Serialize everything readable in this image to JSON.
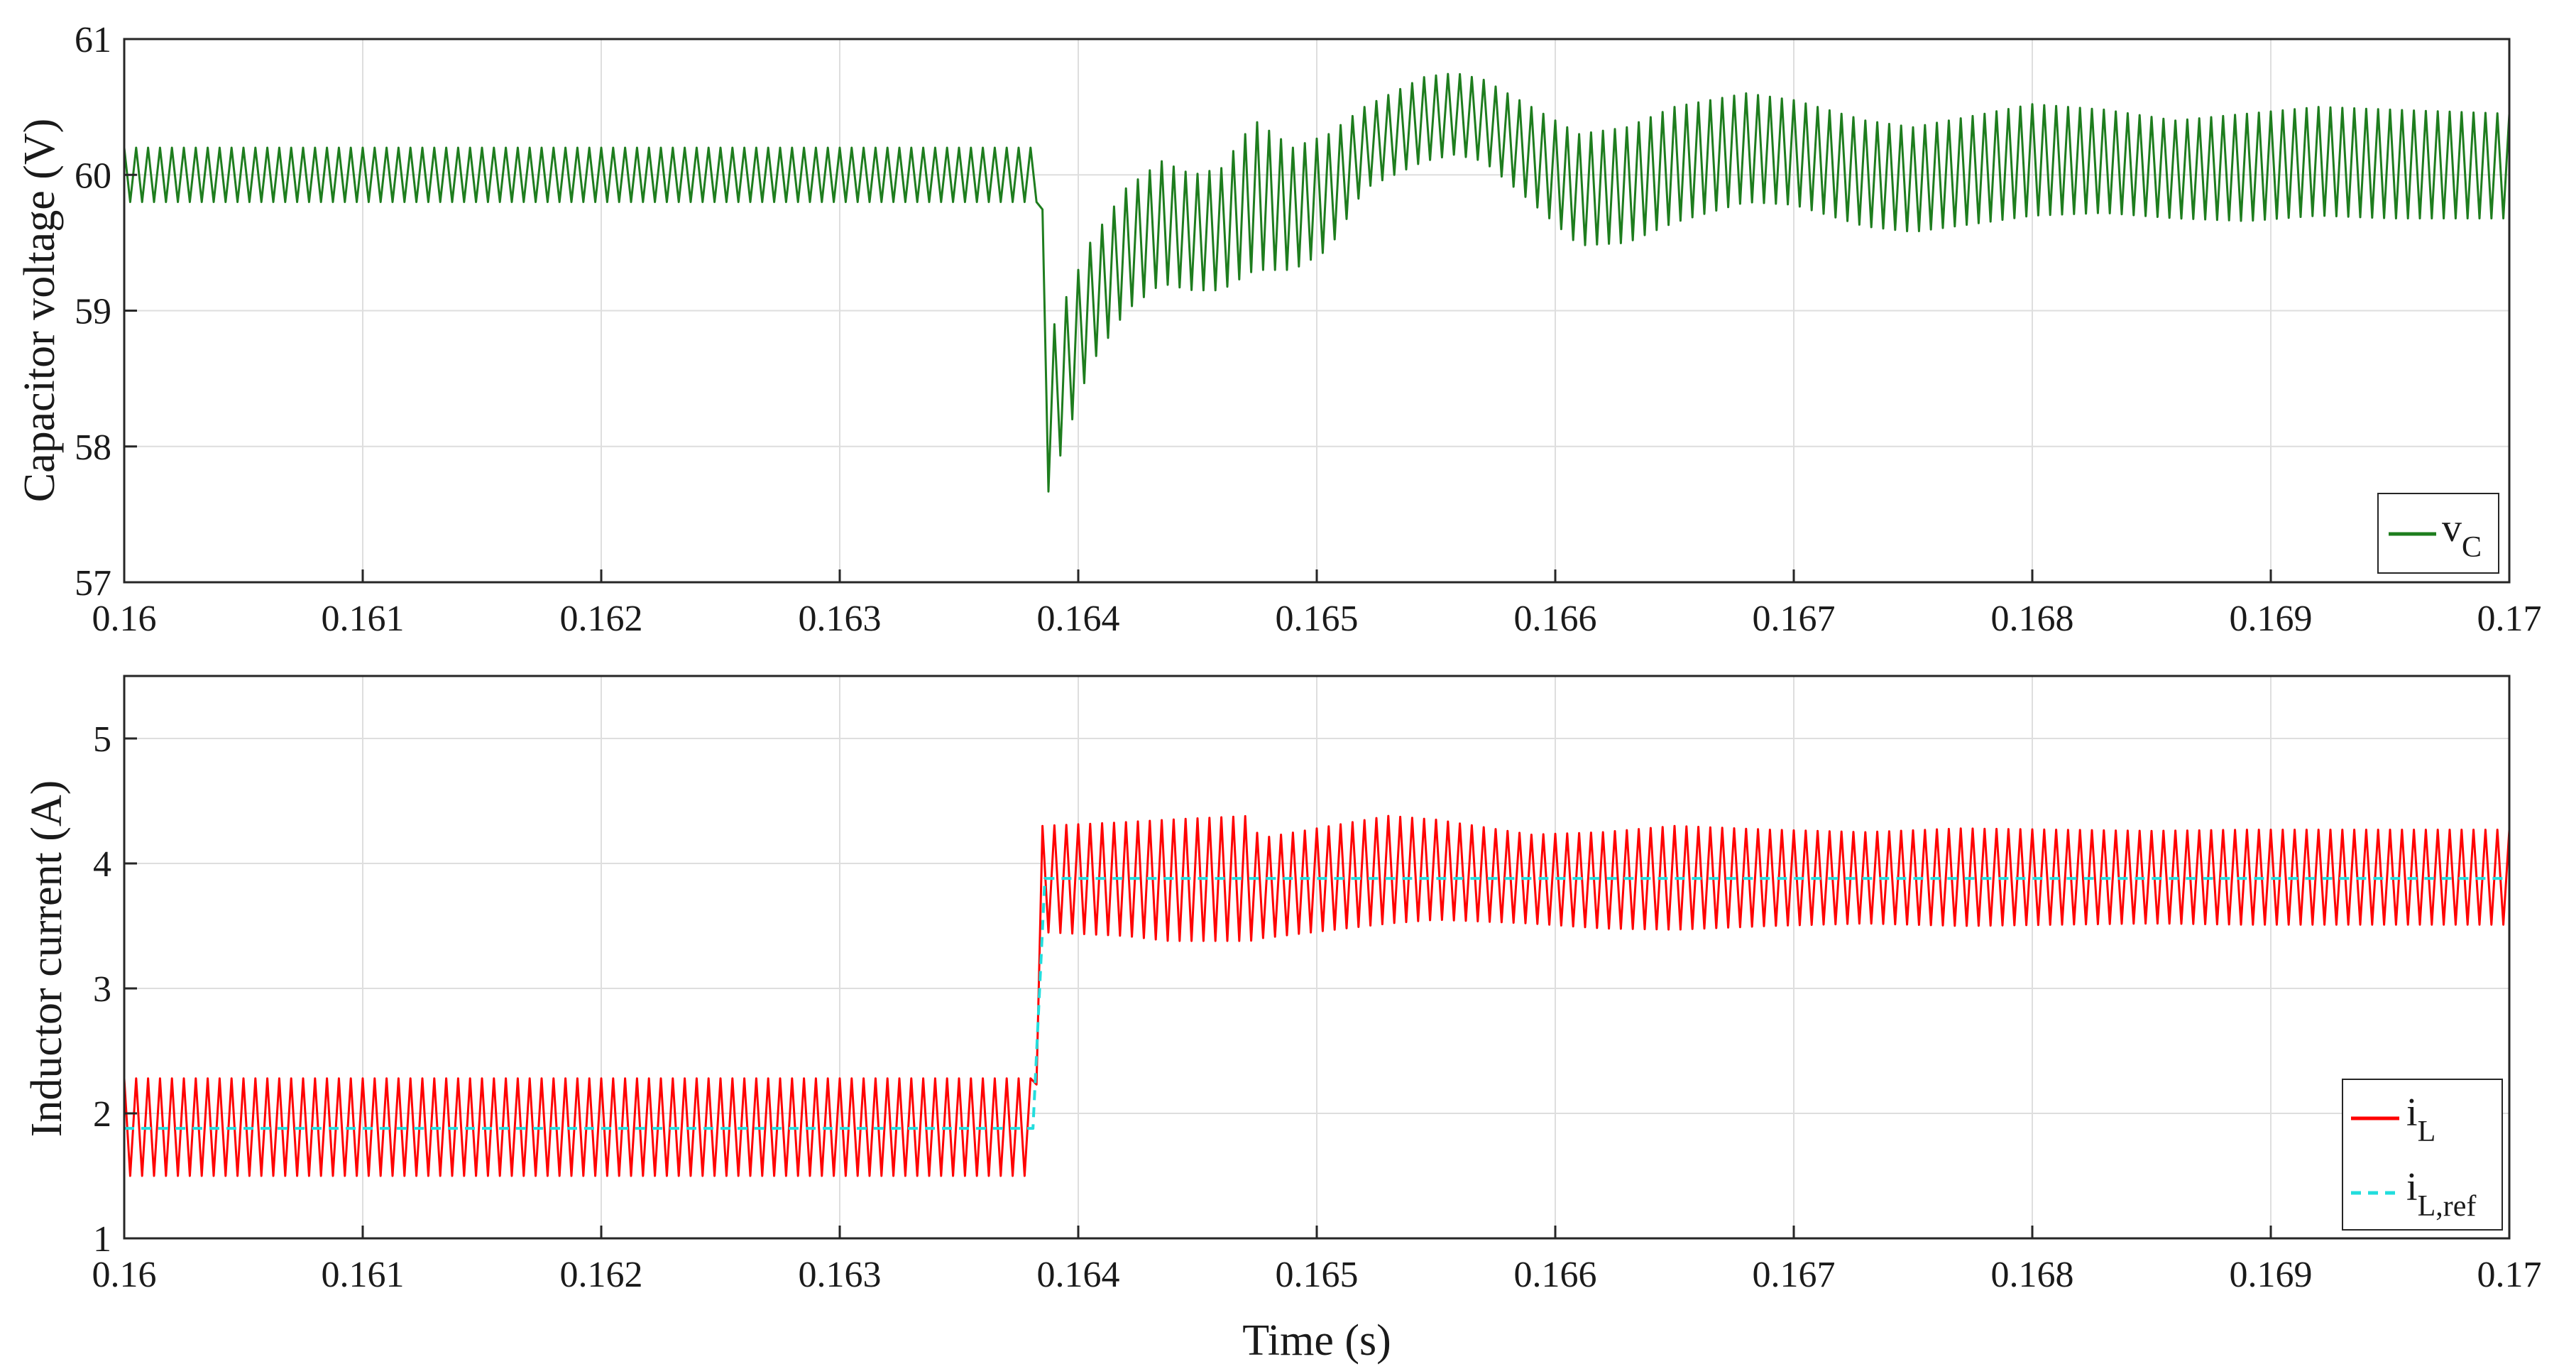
{
  "chart_data": [
    {
      "type": "line",
      "ylabel": "Capacitor voltage (V)",
      "xlabel": "",
      "xlim": [
        0.16,
        0.17
      ],
      "ylim": [
        57,
        61
      ],
      "x_ticks": [
        "0.16",
        "0.161",
        "0.162",
        "0.163",
        "0.164",
        "0.165",
        "0.166",
        "0.167",
        "0.168",
        "0.169",
        "0.17"
      ],
      "y_ticks": [
        "57",
        "58",
        "59",
        "60",
        "61"
      ],
      "grid": true,
      "legend": {
        "placement": "bottom-right",
        "entries": [
          {
            "main": "v",
            "sub": "C",
            "color": "#1e7d1e",
            "style": "solid"
          }
        ]
      },
      "series": [
        {
          "name": "vC",
          "color": "#1e7d1e",
          "ripple_hz": 20000,
          "envelope_x": [
            0.16,
            0.16384,
            0.163862,
            0.1639,
            0.16405,
            0.1642,
            0.16435,
            0.16448,
            0.1646,
            0.16474,
            0.1649,
            0.16505,
            0.1652,
            0.16545,
            0.16558,
            0.1657,
            0.1659,
            0.1661,
            0.1663,
            0.1665,
            0.1668,
            0.167,
            0.1673,
            0.1675,
            0.1678,
            0.168,
            0.1683,
            0.1686,
            0.1689,
            0.1692,
            0.1695,
            0.17
          ],
          "envelope_upper": [
            60.2,
            60.2,
            59.2,
            58.9,
            59.5,
            59.9,
            60.1,
            60.0,
            60.05,
            60.4,
            60.2,
            60.3,
            60.5,
            60.72,
            60.75,
            60.7,
            60.5,
            60.3,
            60.35,
            60.5,
            60.6,
            60.55,
            60.4,
            60.35,
            60.45,
            60.52,
            60.48,
            60.4,
            60.45,
            60.5,
            60.48,
            60.45
          ],
          "envelope_lower": [
            59.8,
            59.8,
            57.6,
            57.8,
            58.6,
            59.0,
            59.2,
            59.15,
            59.15,
            59.3,
            59.3,
            59.45,
            59.9,
            60.1,
            60.15,
            60.1,
            59.8,
            59.48,
            59.5,
            59.65,
            59.8,
            59.78,
            59.62,
            59.58,
            59.65,
            59.7,
            59.72,
            59.68,
            59.66,
            59.7,
            59.68,
            59.68
          ]
        }
      ]
    },
    {
      "type": "line",
      "ylabel": "Inductor current (A)",
      "xlabel": "Time (s)",
      "xlim": [
        0.16,
        0.17
      ],
      "ylim": [
        1,
        5.5
      ],
      "x_ticks": [
        "0.16",
        "0.161",
        "0.162",
        "0.163",
        "0.164",
        "0.165",
        "0.166",
        "0.167",
        "0.168",
        "0.169",
        "0.17"
      ],
      "y_ticks": [
        "1",
        "2",
        "3",
        "4",
        "5"
      ],
      "grid": true,
      "legend": {
        "placement": "bottom-right",
        "entries": [
          {
            "main": "i",
            "sub": "L",
            "color": "#ff0000",
            "style": "solid"
          },
          {
            "main": "i",
            "sub": "L,ref",
            "color": "#22dddd",
            "style": "dashed"
          }
        ]
      },
      "series": [
        {
          "name": "iL",
          "color": "#ff0000",
          "ripple_hz": 20000,
          "envelope_x": [
            0.16,
            0.16381,
            0.16385,
            0.1642,
            0.16438,
            0.16472,
            0.16476,
            0.1653,
            0.1655,
            0.1659,
            0.1662,
            0.1665,
            0.1669,
            0.1673,
            0.1677,
            0.1681,
            0.1685,
            0.1689,
            0.1693,
            0.17
          ],
          "envelope_upper": [
            2.28,
            2.28,
            4.3,
            4.33,
            4.35,
            4.38,
            4.2,
            4.38,
            4.35,
            4.23,
            4.25,
            4.3,
            4.27,
            4.25,
            4.28,
            4.27,
            4.26,
            4.27,
            4.27,
            4.27
          ],
          "envelope_lower": [
            1.5,
            1.5,
            3.45,
            3.42,
            3.38,
            3.38,
            3.4,
            3.52,
            3.55,
            3.52,
            3.48,
            3.47,
            3.5,
            3.52,
            3.5,
            3.51,
            3.52,
            3.51,
            3.51,
            3.51
          ]
        },
        {
          "name": "iL,ref",
          "color": "#22dddd",
          "dashed": true,
          "x": [
            0.16,
            0.16381,
            0.16386,
            0.17
          ],
          "y": [
            1.88,
            1.88,
            3.88,
            3.88
          ]
        }
      ]
    }
  ]
}
